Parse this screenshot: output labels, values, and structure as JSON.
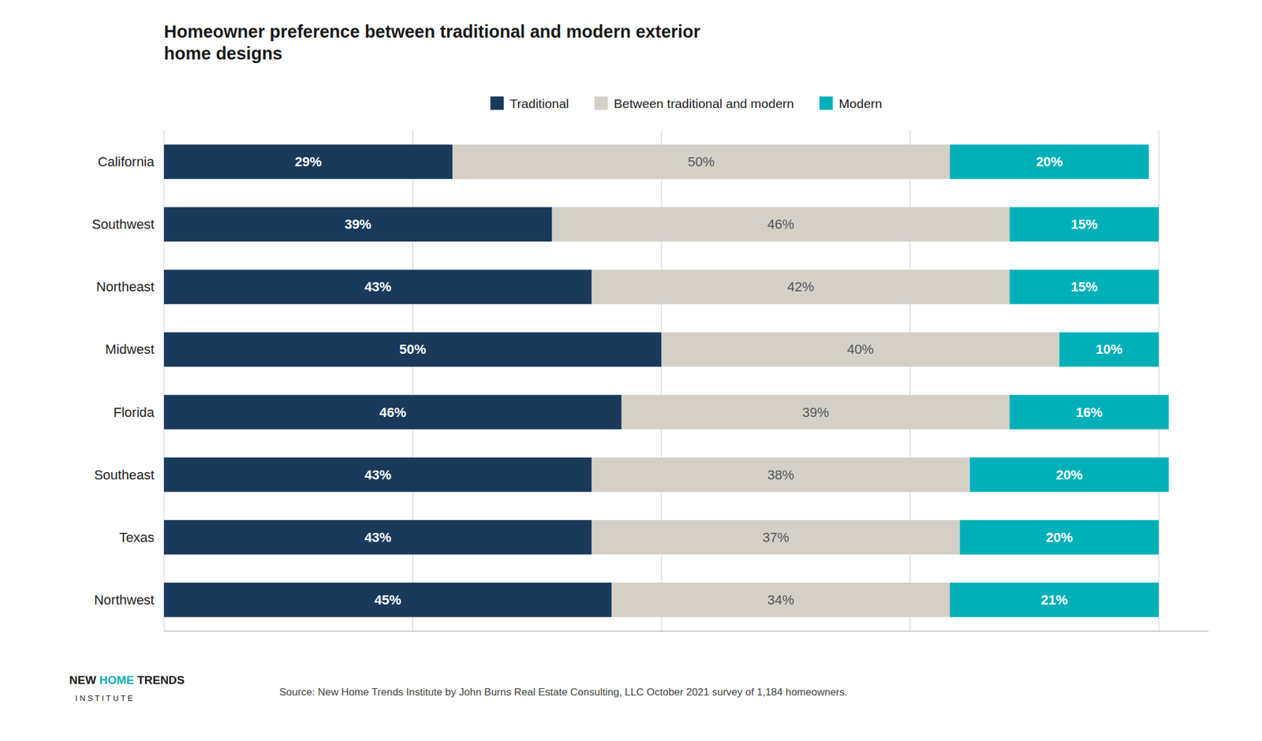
{
  "chart_data": {
    "type": "bar",
    "orientation": "horizontal",
    "stacked": true,
    "title": "Homeowner preference between traditional and modern exterior\nhome designs",
    "categories": [
      "California",
      "Southwest",
      "Northeast",
      "Midwest",
      "Florida",
      "Southeast",
      "Texas",
      "Northwest"
    ],
    "series": [
      {
        "name": "Traditional",
        "color": "#1a3a5c",
        "values": [
          29,
          39,
          43,
          50,
          46,
          43,
          43,
          45
        ],
        "value_labels": [
          "29%",
          "39%",
          "43%",
          "50%",
          "46%",
          "43%",
          "43%",
          "45%"
        ]
      },
      {
        "name": "Between traditional and modern",
        "color": "#d4d0c8",
        "values": [
          50,
          46,
          42,
          40,
          39,
          38,
          37,
          34
        ],
        "value_labels": [
          "50%",
          "46%",
          "42%",
          "40%",
          "39%",
          "38%",
          "37%",
          "34%"
        ]
      },
      {
        "name": "Modern",
        "color": "#00b0b9",
        "values": [
          20,
          15,
          15,
          10,
          16,
          20,
          20,
          21
        ],
        "value_labels": [
          "20%",
          "15%",
          "15%",
          "10%",
          "16%",
          "20%",
          "20%",
          "21%"
        ]
      }
    ],
    "xlim": [
      0,
      105
    ],
    "xticks": [
      0,
      25,
      50,
      75,
      100
    ],
    "grid": true,
    "tick_labels": "y",
    "data_labels": true,
    "legend": "top",
    "annotations": [
      {
        "text": "Source: New Home Trends Institute by John Burns Real Estate Consulting, LLC October 2021 survey of 1,184 homeowners.",
        "color": "#444444"
      },
      {
        "text": "NEW",
        "color": "#1a1a1a"
      },
      {
        "text": "HOME",
        "color": "#00b0b9"
      },
      {
        "text": "TRENDS",
        "color": "#1a1a1a"
      },
      {
        "text": "I N S T I T U T E",
        "color": "#1a1a1a"
      }
    ]
  }
}
